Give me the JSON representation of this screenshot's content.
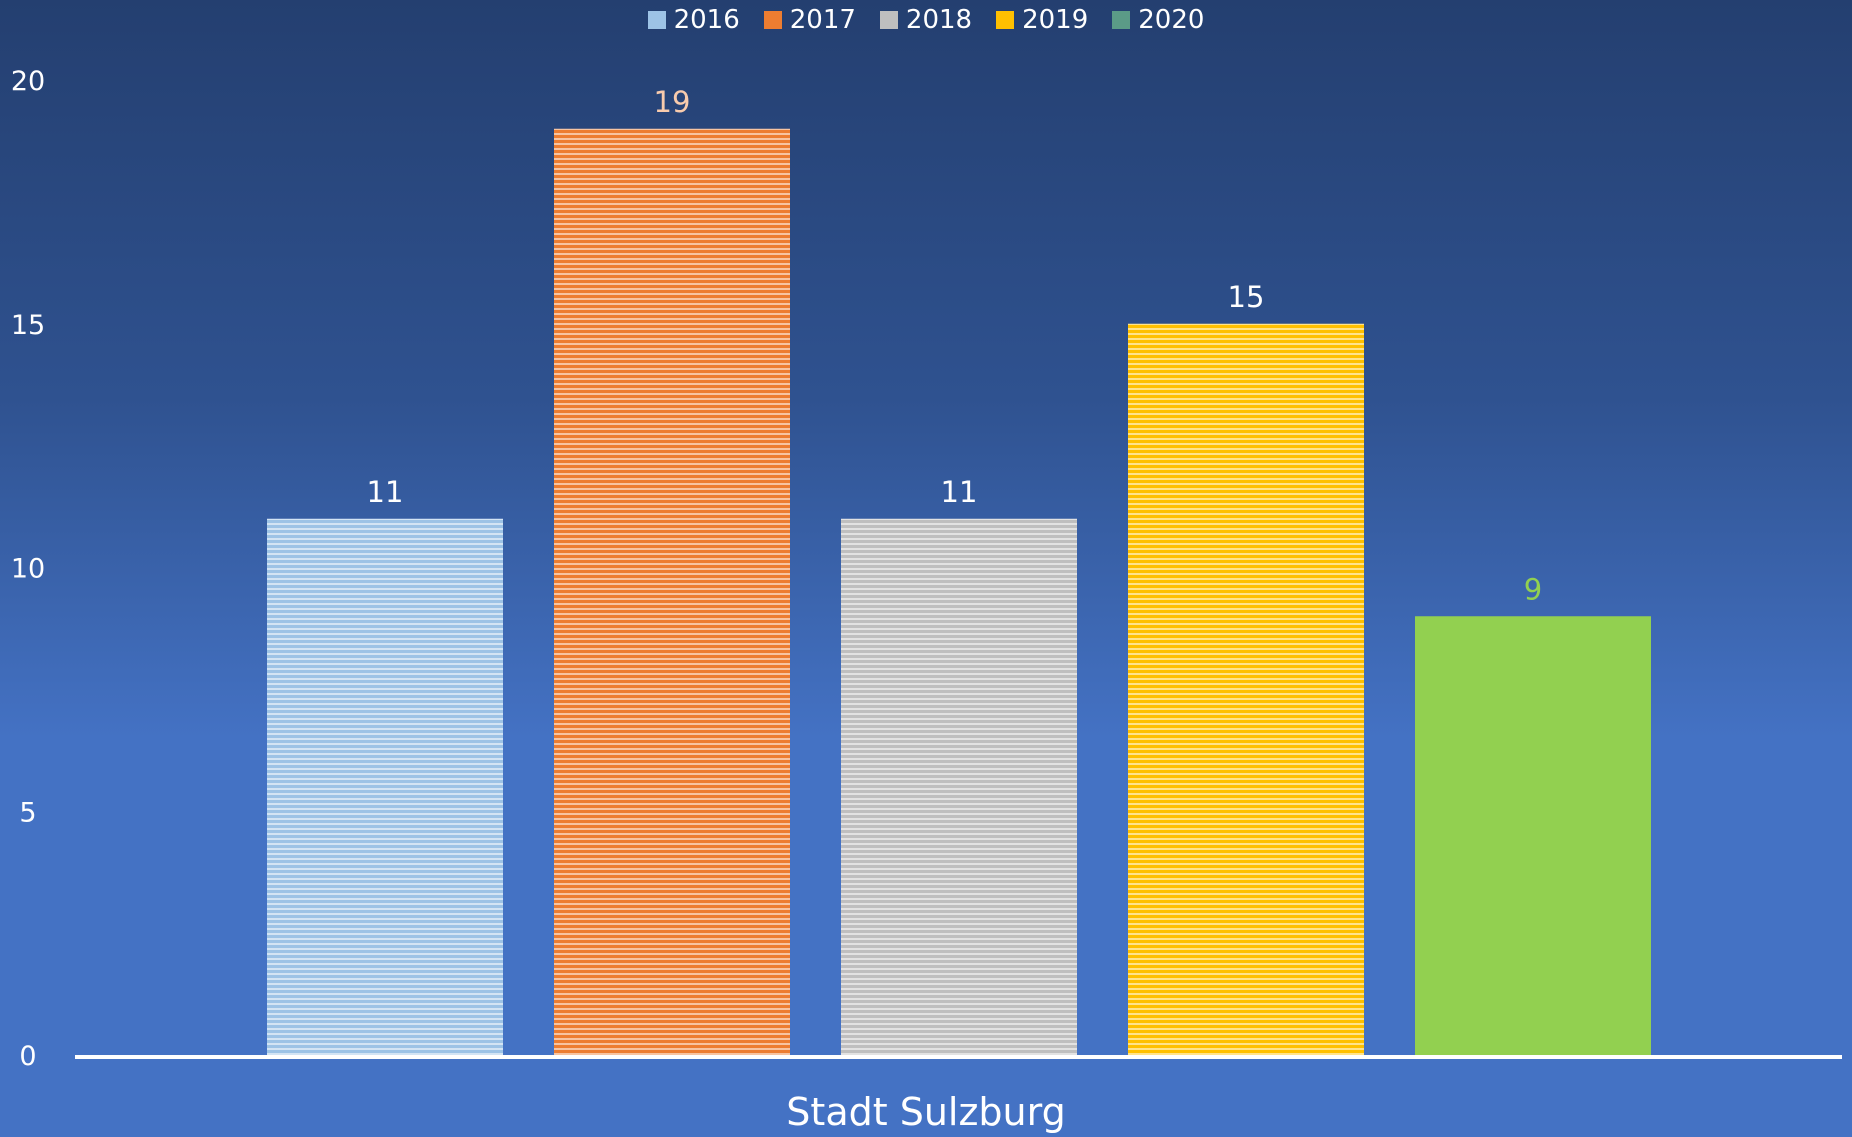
{
  "chart_data": {
    "type": "bar",
    "categories": [
      "Stadt Sulzburg"
    ],
    "series": [
      {
        "name": "2016",
        "values": [
          11
        ],
        "color": "#9dc3e6",
        "pattern": "striped"
      },
      {
        "name": "2017",
        "values": [
          19
        ],
        "color": "#ed7d31",
        "pattern": "striped"
      },
      {
        "name": "2018",
        "values": [
          11
        ],
        "color": "#bfbfbf",
        "pattern": "striped"
      },
      {
        "name": "2019",
        "values": [
          15
        ],
        "color": "#ffc000",
        "pattern": "striped"
      },
      {
        "name": "2020",
        "values": [
          9
        ],
        "color": "#92d050",
        "pattern": "solid",
        "legend_color": "#5b9b87"
      }
    ],
    "ylim": [
      0,
      20
    ],
    "yticks": [
      "0",
      "5",
      "10",
      "15",
      "20"
    ],
    "data_label_colors": [
      "#ffffff",
      "#f8cbad",
      "#ffffff",
      "#ffffff",
      "#92d050"
    ],
    "grid": false,
    "legend_position": "top"
  }
}
